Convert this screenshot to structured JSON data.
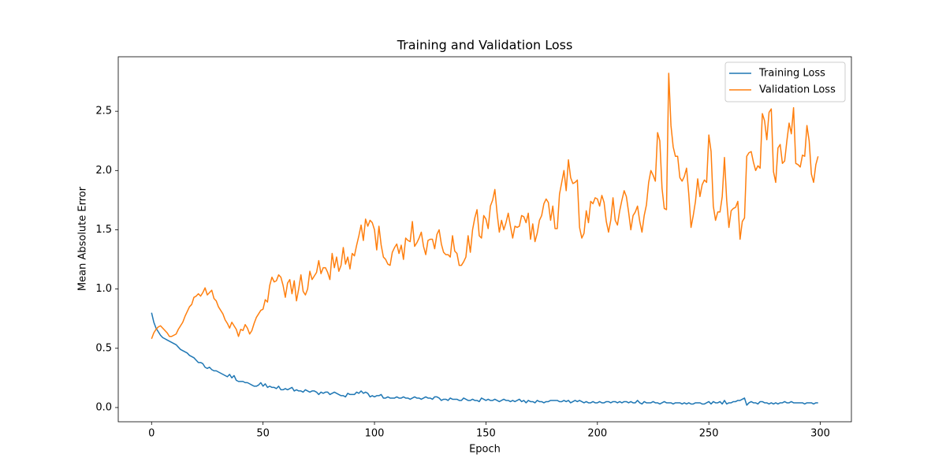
{
  "chart_data": {
    "type": "line",
    "title": "Training and Validation Loss",
    "x_label": "Epoch",
    "y_label": "Mean Absolute Error",
    "xlim": [
      -14.95,
      313.95
    ],
    "ylim": [
      -0.12,
      2.96
    ],
    "xticks": [
      0,
      50,
      100,
      150,
      200,
      250,
      300
    ],
    "yticks": [
      {
        "value": 0,
        "label": "0.0"
      },
      0.5,
      {
        "value": 1,
        "label": "1.0"
      },
      1.5,
      {
        "value": 2,
        "label": "2.0"
      },
      2.5
    ],
    "grid": false,
    "legend": "upper right",
    "x": [
      0,
      1,
      2,
      3,
      4,
      5,
      6,
      7,
      8,
      9,
      10,
      11,
      12,
      13,
      14,
      15,
      16,
      17,
      18,
      19,
      20,
      21,
      22,
      23,
      24,
      25,
      26,
      27,
      28,
      29,
      30,
      31,
      32,
      33,
      34,
      35,
      36,
      37,
      38,
      39,
      40,
      41,
      42,
      43,
      44,
      45,
      46,
      47,
      48,
      49,
      50,
      51,
      52,
      53,
      54,
      55,
      56,
      57,
      58,
      59,
      60,
      61,
      62,
      63,
      64,
      65,
      66,
      67,
      68,
      69,
      70,
      71,
      72,
      73,
      74,
      75,
      76,
      77,
      78,
      79,
      80,
      81,
      82,
      83,
      84,
      85,
      86,
      87,
      88,
      89,
      90,
      91,
      92,
      93,
      94,
      95,
      96,
      97,
      98,
      99,
      100,
      101,
      102,
      103,
      104,
      105,
      106,
      107,
      108,
      109,
      110,
      111,
      112,
      113,
      114,
      115,
      116,
      117,
      118,
      119,
      120,
      121,
      122,
      123,
      124,
      125,
      126,
      127,
      128,
      129,
      130,
      131,
      132,
      133,
      134,
      135,
      136,
      137,
      138,
      139,
      140,
      141,
      142,
      143,
      144,
      145,
      146,
      147,
      148,
      149,
      150,
      151,
      152,
      153,
      154,
      155,
      156,
      157,
      158,
      159,
      160,
      161,
      162,
      163,
      164,
      165,
      166,
      167,
      168,
      169,
      170,
      171,
      172,
      173,
      174,
      175,
      176,
      177,
      178,
      179,
      180,
      181,
      182,
      183,
      184,
      185,
      186,
      187,
      188,
      189,
      190,
      191,
      192,
      193,
      194,
      195,
      196,
      197,
      198,
      199,
      200,
      201,
      202,
      203,
      204,
      205,
      206,
      207,
      208,
      209,
      210,
      211,
      212,
      213,
      214,
      215,
      216,
      217,
      218,
      219,
      220,
      221,
      222,
      223,
      224,
      225,
      226,
      227,
      228,
      229,
      230,
      231,
      232,
      233,
      234,
      235,
      236,
      237,
      238,
      239,
      240,
      241,
      242,
      243,
      244,
      245,
      246,
      247,
      248,
      249,
      250,
      251,
      252,
      253,
      254,
      255,
      256,
      257,
      258,
      259,
      260,
      261,
      262,
      263,
      264,
      265,
      266,
      267,
      268,
      269,
      270,
      271,
      272,
      273,
      274,
      275,
      276,
      277,
      278,
      279,
      280,
      281,
      282,
      283,
      284,
      285,
      286,
      287,
      288,
      289,
      290,
      291,
      292,
      293,
      294,
      295,
      296,
      297,
      298,
      299
    ],
    "series": [
      {
        "name": "Training Loss",
        "color": "#1f77b4",
        "values": [
          0.8,
          0.72,
          0.67,
          0.64,
          0.61,
          0.59,
          0.58,
          0.57,
          0.56,
          0.55,
          0.54,
          0.53,
          0.51,
          0.49,
          0.48,
          0.47,
          0.46,
          0.44,
          0.43,
          0.42,
          0.4,
          0.38,
          0.38,
          0.37,
          0.34,
          0.33,
          0.34,
          0.32,
          0.31,
          0.31,
          0.3,
          0.29,
          0.28,
          0.27,
          0.26,
          0.28,
          0.25,
          0.27,
          0.23,
          0.22,
          0.22,
          0.22,
          0.21,
          0.21,
          0.2,
          0.19,
          0.18,
          0.18,
          0.19,
          0.21,
          0.18,
          0.2,
          0.17,
          0.18,
          0.17,
          0.17,
          0.16,
          0.18,
          0.15,
          0.15,
          0.16,
          0.15,
          0.16,
          0.17,
          0.14,
          0.15,
          0.14,
          0.14,
          0.13,
          0.15,
          0.14,
          0.13,
          0.14,
          0.14,
          0.13,
          0.11,
          0.13,
          0.12,
          0.13,
          0.13,
          0.11,
          0.12,
          0.13,
          0.12,
          0.11,
          0.1,
          0.1,
          0.09,
          0.12,
          0.11,
          0.11,
          0.11,
          0.13,
          0.12,
          0.14,
          0.12,
          0.13,
          0.12,
          0.09,
          0.1,
          0.09,
          0.1,
          0.1,
          0.11,
          0.08,
          0.08,
          0.09,
          0.08,
          0.08,
          0.08,
          0.09,
          0.08,
          0.08,
          0.09,
          0.08,
          0.08,
          0.07,
          0.08,
          0.09,
          0.08,
          0.08,
          0.07,
          0.08,
          0.09,
          0.08,
          0.08,
          0.07,
          0.09,
          0.09,
          0.08,
          0.06,
          0.07,
          0.07,
          0.06,
          0.08,
          0.07,
          0.07,
          0.07,
          0.06,
          0.06,
          0.08,
          0.07,
          0.06,
          0.06,
          0.07,
          0.06,
          0.06,
          0.05,
          0.08,
          0.07,
          0.06,
          0.07,
          0.06,
          0.06,
          0.07,
          0.06,
          0.05,
          0.06,
          0.07,
          0.06,
          0.06,
          0.05,
          0.06,
          0.05,
          0.06,
          0.07,
          0.05,
          0.06,
          0.04,
          0.06,
          0.05,
          0.05,
          0.04,
          0.06,
          0.05,
          0.05,
          0.04,
          0.05,
          0.05,
          0.06,
          0.06,
          0.06,
          0.06,
          0.05,
          0.05,
          0.06,
          0.05,
          0.06,
          0.04,
          0.05,
          0.06,
          0.05,
          0.06,
          0.05,
          0.04,
          0.05,
          0.04,
          0.04,
          0.05,
          0.04,
          0.04,
          0.05,
          0.04,
          0.04,
          0.05,
          0.05,
          0.04,
          0.05,
          0.05,
          0.04,
          0.05,
          0.04,
          0.05,
          0.05,
          0.04,
          0.05,
          0.04,
          0.04,
          0.06,
          0.04,
          0.03,
          0.05,
          0.04,
          0.04,
          0.04,
          0.05,
          0.04,
          0.04,
          0.03,
          0.04,
          0.05,
          0.04,
          0.04,
          0.04,
          0.03,
          0.04,
          0.04,
          0.04,
          0.03,
          0.04,
          0.03,
          0.04,
          0.03,
          0.03,
          0.04,
          0.04,
          0.04,
          0.03,
          0.03,
          0.04,
          0.05,
          0.03,
          0.05,
          0.04,
          0.04,
          0.05,
          0.03,
          0.06,
          0.03,
          0.04,
          0.04,
          0.05,
          0.05,
          0.06,
          0.06,
          0.07,
          0.08,
          0.02,
          0.04,
          0.05,
          0.04,
          0.04,
          0.03,
          0.05,
          0.05,
          0.04,
          0.04,
          0.03,
          0.04,
          0.03,
          0.04,
          0.03,
          0.04,
          0.04,
          0.05,
          0.04,
          0.04,
          0.05,
          0.04,
          0.04,
          0.04,
          0.04,
          0.04,
          0.03,
          0.04,
          0.04,
          0.04,
          0.03,
          0.04,
          0.04
        ]
      },
      {
        "name": "Validation Loss",
        "color": "#ff7f0e",
        "values": [
          0.58,
          0.63,
          0.66,
          0.68,
          0.69,
          0.67,
          0.65,
          0.63,
          0.6,
          0.6,
          0.61,
          0.62,
          0.66,
          0.69,
          0.72,
          0.77,
          0.81,
          0.85,
          0.87,
          0.93,
          0.94,
          0.96,
          0.94,
          0.97,
          1.01,
          0.95,
          0.97,
          0.99,
          0.92,
          0.9,
          0.85,
          0.82,
          0.79,
          0.74,
          0.71,
          0.67,
          0.72,
          0.69,
          0.66,
          0.6,
          0.66,
          0.65,
          0.7,
          0.67,
          0.62,
          0.65,
          0.71,
          0.76,
          0.79,
          0.82,
          0.83,
          0.91,
          0.89,
          1.03,
          1.1,
          1.06,
          1.07,
          1.12,
          1.1,
          1.03,
          0.93,
          1.05,
          1.08,
          0.96,
          1.07,
          0.9,
          1.0,
          1.12,
          0.98,
          0.95,
          1.0,
          1.15,
          1.08,
          1.11,
          1.14,
          1.24,
          1.13,
          1.18,
          1.18,
          1.14,
          1.08,
          1.3,
          1.18,
          1.27,
          1.15,
          1.2,
          1.35,
          1.21,
          1.27,
          1.17,
          1.3,
          1.28,
          1.37,
          1.45,
          1.54,
          1.41,
          1.59,
          1.53,
          1.58,
          1.56,
          1.5,
          1.33,
          1.53,
          1.37,
          1.27,
          1.25,
          1.21,
          1.2,
          1.31,
          1.35,
          1.38,
          1.3,
          1.37,
          1.25,
          1.43,
          1.41,
          1.4,
          1.57,
          1.36,
          1.39,
          1.43,
          1.48,
          1.36,
          1.29,
          1.41,
          1.42,
          1.42,
          1.34,
          1.46,
          1.5,
          1.38,
          1.31,
          1.29,
          1.29,
          1.27,
          1.45,
          1.32,
          1.3,
          1.2,
          1.2,
          1.23,
          1.27,
          1.45,
          1.31,
          1.5,
          1.6,
          1.67,
          1.45,
          1.43,
          1.62,
          1.59,
          1.51,
          1.7,
          1.75,
          1.84,
          1.64,
          1.48,
          1.58,
          1.5,
          1.56,
          1.64,
          1.53,
          1.43,
          1.53,
          1.52,
          1.53,
          1.62,
          1.61,
          1.56,
          1.64,
          1.42,
          1.55,
          1.4,
          1.47,
          1.58,
          1.62,
          1.72,
          1.76,
          1.73,
          1.58,
          1.7,
          1.51,
          1.51,
          1.8,
          1.9,
          2.0,
          1.83,
          2.09,
          1.94,
          1.89,
          1.9,
          1.92,
          1.52,
          1.43,
          1.47,
          1.66,
          1.56,
          1.74,
          1.72,
          1.77,
          1.76,
          1.7,
          1.79,
          1.73,
          1.57,
          1.48,
          1.58,
          1.77,
          1.58,
          1.54,
          1.66,
          1.75,
          1.83,
          1.78,
          1.65,
          1.5,
          1.62,
          1.65,
          1.7,
          1.57,
          1.48,
          1.62,
          1.71,
          1.9,
          2.0,
          1.96,
          1.91,
          2.32,
          2.25,
          1.85,
          1.68,
          1.67,
          2.82,
          2.38,
          2.2,
          2.12,
          2.12,
          1.94,
          1.91,
          1.95,
          2.02,
          1.8,
          1.52,
          1.62,
          1.74,
          1.93,
          1.78,
          1.88,
          1.92,
          1.9,
          2.3,
          2.16,
          1.7,
          1.58,
          1.65,
          1.65,
          1.78,
          2.11,
          1.75,
          1.52,
          1.66,
          1.68,
          1.69,
          1.74,
          1.42,
          1.57,
          1.6,
          2.12,
          2.15,
          2.16,
          2.07,
          2.0,
          2.04,
          2.02,
          2.48,
          2.42,
          2.26,
          2.49,
          2.52,
          1.99,
          1.9,
          2.19,
          2.22,
          2.06,
          2.08,
          2.25,
          2.4,
          2.31,
          2.53,
          2.06,
          2.05,
          2.03,
          2.13,
          2.12,
          2.38,
          2.25,
          1.97,
          1.9,
          2.05,
          2.12
        ]
      }
    ]
  }
}
